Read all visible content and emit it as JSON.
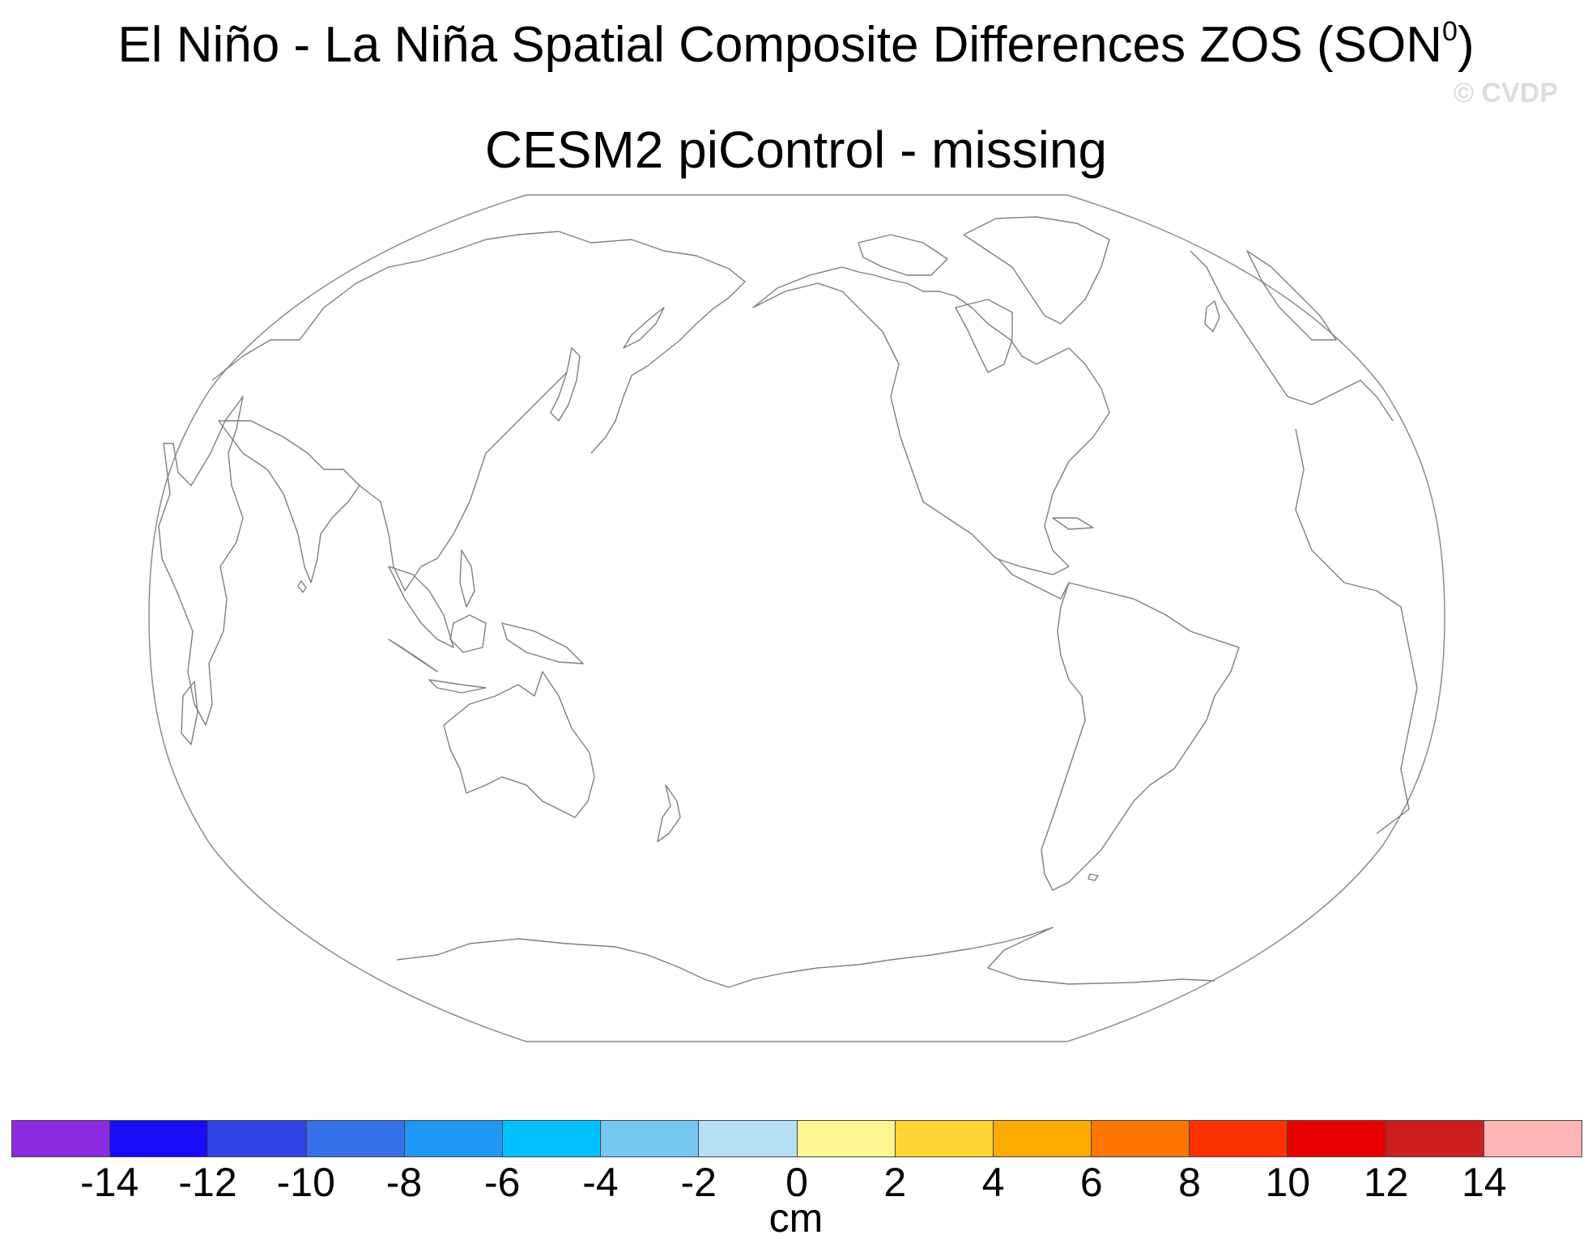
{
  "title": {
    "main": "El Niño - La Niña Spatial Composite Differences ZOS (SON",
    "superscript": "0",
    "close": ")"
  },
  "subtitle": "CESM2 piControl - missing",
  "watermark": "© CVDP",
  "map": {
    "projection": "robinson-like",
    "central_longitude": 200,
    "data_state": "missing (no shading, coastlines only)",
    "coastline_color": "#7f7f7f",
    "border_color": "#8c8c8c"
  },
  "colorbar": {
    "units": "cm",
    "labels": [
      "-14",
      "-12",
      "-10",
      "-8",
      "-6",
      "-4",
      "-2",
      "0",
      "2",
      "4",
      "6",
      "8",
      "10",
      "12",
      "14"
    ],
    "colors": [
      "#8a2be2",
      "#1a0bf5",
      "#2e44e6",
      "#3670ea",
      "#1f97f5",
      "#00c0ff",
      "#76c8f2",
      "#b5dff5",
      "#fdf58f",
      "#fed532",
      "#fdaa00",
      "#fd7700",
      "#fd3200",
      "#e80000",
      "#cc1e1e",
      "#ffb5b5"
    ]
  }
}
